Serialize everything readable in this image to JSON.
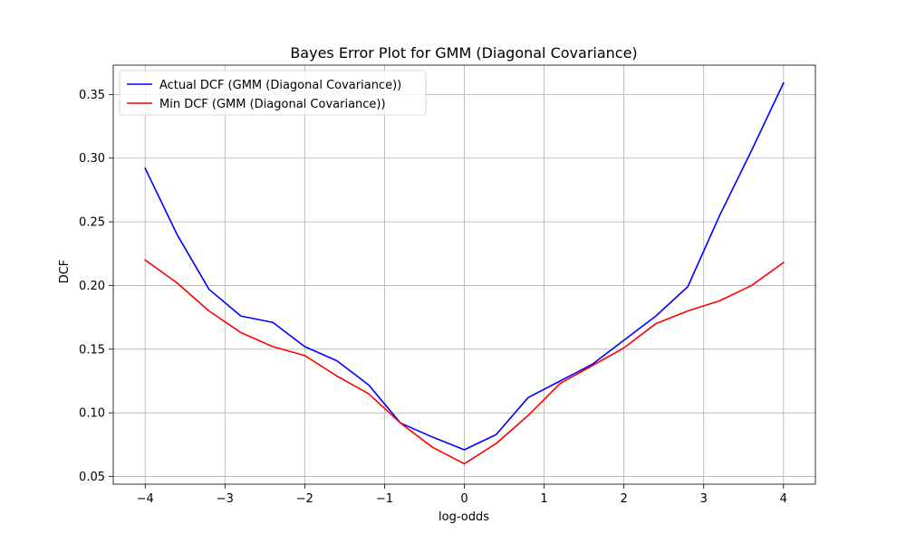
{
  "chart_data": {
    "type": "line",
    "title": "Bayes Error Plot for GMM (Diagonal Covariance)",
    "xlabel": "log-odds",
    "ylabel": "DCF",
    "xlim": [
      -4.4,
      4.4
    ],
    "ylim": [
      0.044,
      0.373
    ],
    "xticks": [
      -4,
      -3,
      -2,
      -1,
      0,
      1,
      2,
      3,
      4
    ],
    "xtick_labels": [
      "−4",
      "−3",
      "−2",
      "−1",
      "0",
      "1",
      "2",
      "3",
      "4"
    ],
    "yticks": [
      0.05,
      0.1,
      0.15,
      0.2,
      0.25,
      0.3,
      0.35
    ],
    "ytick_labels": [
      "0.05",
      "0.10",
      "0.15",
      "0.20",
      "0.25",
      "0.30",
      "0.35"
    ],
    "grid": true,
    "legend_position": "top-left",
    "x": [
      -4.0,
      -3.6,
      -3.2,
      -2.8,
      -2.4,
      -2.0,
      -1.6,
      -1.2,
      -0.8,
      -0.4,
      0.0,
      0.4,
      0.8,
      1.2,
      1.6,
      2.0,
      2.4,
      2.8,
      3.2,
      3.6,
      4.0
    ],
    "series": [
      {
        "name": "Actual DCF (GMM (Diagonal Covariance))",
        "color": "#0000ff",
        "values": [
          0.292,
          0.24,
          0.197,
          0.176,
          0.171,
          0.152,
          0.141,
          0.122,
          0.092,
          0.081,
          0.071,
          0.083,
          0.112,
          0.125,
          0.138,
          0.157,
          0.176,
          0.199,
          0.255,
          0.306,
          0.359
        ]
      },
      {
        "name": "Min DCF (GMM (Diagonal Covariance))",
        "color": "#ff0000",
        "values": [
          0.22,
          0.202,
          0.18,
          0.163,
          0.152,
          0.145,
          0.129,
          0.115,
          0.092,
          0.073,
          0.06,
          0.076,
          0.098,
          0.123,
          0.137,
          0.151,
          0.17,
          0.18,
          0.188,
          0.2,
          0.218
        ]
      }
    ]
  }
}
